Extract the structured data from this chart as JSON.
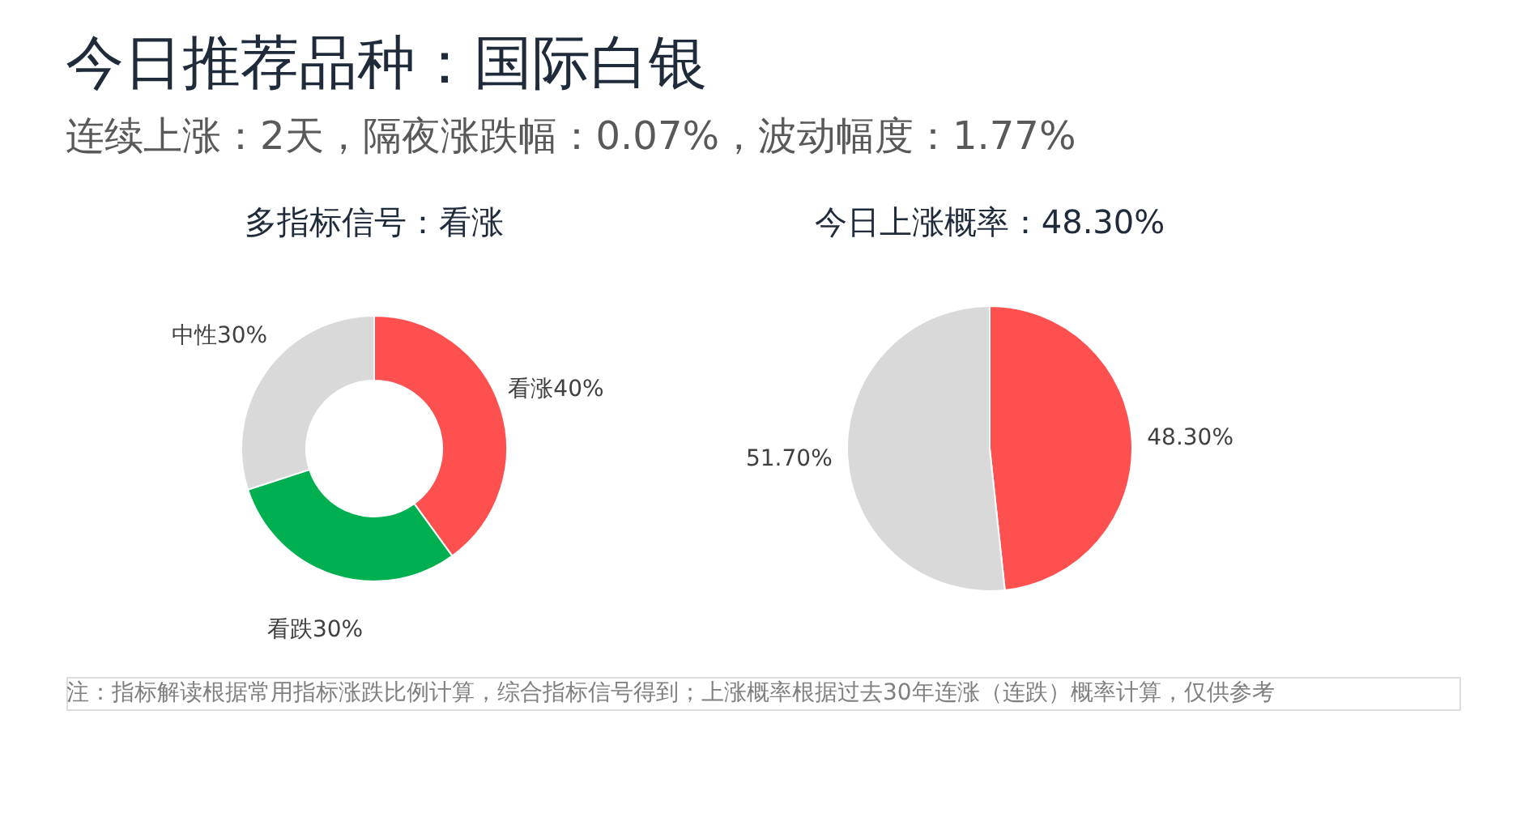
{
  "chart_data": [
    {
      "type": "other",
      "title": "今日推荐品种：国际白银",
      "subtitle": "连续上涨：2天，隔夜涨跌幅：0.07%，波动幅度：1.77%",
      "annotations": [
        "注：指标解读根据常用指标涨跌比例计算，综合指标信号得到；上涨概率根据过去30年连涨（连跌）概率计算，仅供参考"
      ]
    },
    {
      "type": "donut",
      "title": "多指标信号：看涨",
      "categories": [
        "看涨",
        "看跌",
        "中性"
      ],
      "values": [
        40,
        30,
        30
      ],
      "colors": [
        "#ff5050",
        "#00b050",
        "#d9d9d9"
      ],
      "value_labels": [
        "40%",
        "30%",
        "30%"
      ]
    },
    {
      "type": "pie",
      "title": "今日上涨概率：48.30%",
      "categories": [
        null,
        null
      ],
      "values": [
        48.3,
        51.7
      ],
      "colors": [
        "#ff5050",
        "#d9d9d9"
      ],
      "value_labels": [
        "48.30%",
        "51.70%"
      ]
    }
  ]
}
